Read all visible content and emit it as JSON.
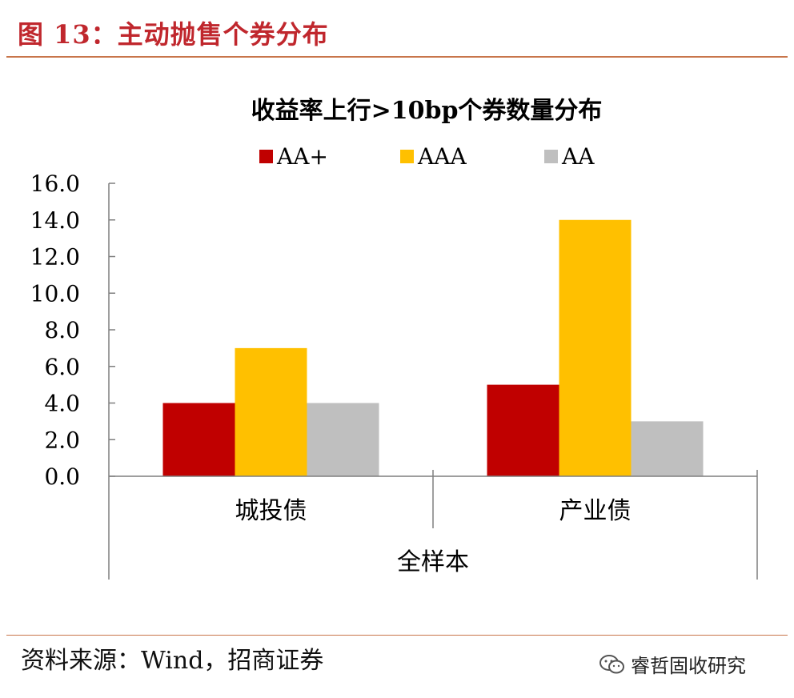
{
  "figure_title": "图 13：主动抛售个券分布",
  "source": "资料来源：Wind，招商证券",
  "watermark": {
    "text": "睿哲固收研究",
    "icon": "wechat-icon"
  },
  "colors": {
    "accent": "#C0272D",
    "rule": "#C8754A"
  },
  "chart_data": {
    "type": "bar",
    "title": "收益率上行>10bp个券数量分布",
    "categories": [
      "城投债",
      "产业债"
    ],
    "group_label": "全样本",
    "series": [
      {
        "name": "AA+",
        "color": "#C00000",
        "values": [
          4.0,
          5.0
        ]
      },
      {
        "name": "AAA",
        "color": "#FFC000",
        "values": [
          7.0,
          14.0
        ]
      },
      {
        "name": "AA",
        "color": "#BFBFBF",
        "values": [
          4.0,
          3.0
        ]
      }
    ],
    "ylim": [
      0,
      16
    ],
    "yticks": [
      "0.0",
      "2.0",
      "4.0",
      "6.0",
      "8.0",
      "10.0",
      "12.0",
      "14.0",
      "16.0"
    ],
    "legend_position": "top",
    "grid": false
  }
}
